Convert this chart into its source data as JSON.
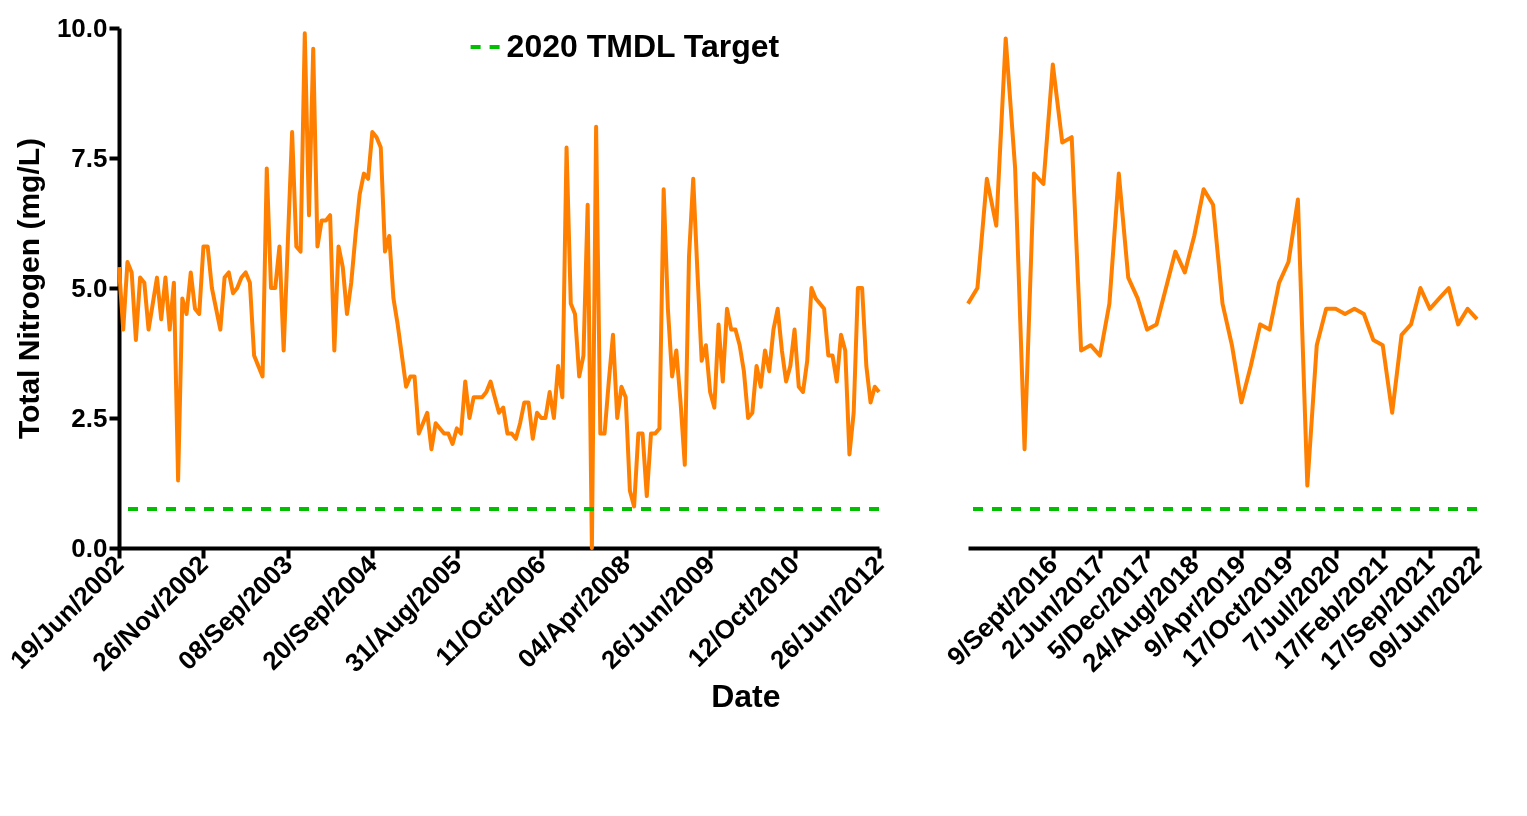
{
  "chart_data": [
    {
      "type": "line",
      "xlabel": "Date",
      "ylabel": "Total Nitrogen (mg/L)",
      "categories": [
        "19/Jun/2002",
        null,
        null,
        null,
        null,
        null,
        null,
        null,
        null,
        null,
        null,
        null,
        null,
        null,
        null,
        null,
        null,
        null,
        null,
        null,
        "26/Nov/2002",
        null,
        null,
        null,
        null,
        null,
        null,
        null,
        null,
        null,
        null,
        null,
        null,
        null,
        null,
        null,
        null,
        null,
        null,
        null,
        "08/Sep/2003",
        null,
        null,
        null,
        null,
        null,
        null,
        null,
        null,
        null,
        null,
        null,
        null,
        null,
        null,
        null,
        null,
        null,
        null,
        null,
        "20/Sep/2004",
        null,
        null,
        null,
        null,
        null,
        null,
        null,
        null,
        null,
        null,
        null,
        null,
        null,
        null,
        null,
        null,
        null,
        null,
        null,
        "31/Aug/2005",
        null,
        null,
        null,
        null,
        null,
        null,
        null,
        null,
        null,
        null,
        null,
        null,
        null,
        null,
        null,
        null,
        null,
        null,
        null,
        "11/Oct/2006",
        null,
        null,
        null,
        null,
        null,
        null,
        null,
        null,
        null,
        null,
        null,
        null,
        null,
        null,
        null,
        null,
        null,
        null,
        null,
        "04/Apr/2008",
        null,
        null,
        null,
        null,
        null,
        null,
        null,
        null,
        null,
        null,
        null,
        null,
        null,
        null,
        null,
        null,
        null,
        null,
        null,
        "26/Jun/2009",
        null,
        null,
        null,
        null,
        null,
        null,
        null,
        null,
        null,
        null,
        null,
        null,
        null,
        null,
        null,
        null,
        null,
        null,
        null,
        "12/Oct/2010",
        null,
        null,
        null,
        null,
        null,
        null,
        null,
        null,
        null,
        null,
        null,
        null,
        null,
        null,
        null,
        null,
        null,
        null,
        null,
        "26/Jun/2012"
      ],
      "ylim": [
        0,
        10
      ],
      "yticks": [
        {
          "value": 0,
          "label": "0.0"
        },
        2.5,
        {
          "value": 5,
          "label": "5.0"
        },
        7.5,
        {
          "value": 10,
          "label": "10.0"
        }
      ],
      "series": [
        {
          "color": "#ff8000",
          "values": [
            5.4,
            4.2,
            5.5,
            5.3,
            4.0,
            5.2,
            5.1,
            4.2,
            4.7,
            5.2,
            4.4,
            5.2,
            4.2,
            5.1,
            1.3,
            4.8,
            4.5,
            5.3,
            4.6,
            4.5,
            5.8,
            5.8,
            5.0,
            4.6,
            4.2,
            5.2,
            5.3,
            4.9,
            5.0,
            5.2,
            5.3,
            5.1,
            3.7,
            3.5,
            3.3,
            7.3,
            5.0,
            5.0,
            5.8,
            3.8,
            5.9,
            8.0,
            5.8,
            5.7,
            9.9,
            6.4,
            9.6,
            5.8,
            6.3,
            6.3,
            6.4,
            3.8,
            5.8,
            5.4,
            4.5,
            5.1,
            6.0,
            6.8,
            7.2,
            7.1,
            8.0,
            7.9,
            7.7,
            5.7,
            6.0,
            4.8,
            4.3,
            3.7,
            3.1,
            3.3,
            3.3,
            2.2,
            2.4,
            2.6,
            1.9,
            2.4,
            2.3,
            2.2,
            2.2,
            2.0,
            2.3,
            2.2,
            3.2,
            2.5,
            2.9,
            2.9,
            2.9,
            3.0,
            3.2,
            2.9,
            2.6,
            2.7,
            2.2,
            2.2,
            2.1,
            2.4,
            2.8,
            2.8,
            2.1,
            2.6,
            2.5,
            2.5,
            3.0,
            2.5,
            3.5,
            2.9,
            7.7,
            4.7,
            4.5,
            3.3,
            3.7,
            6.6,
            0.0,
            8.1,
            2.2,
            2.2,
            3.2,
            4.1,
            2.5,
            3.1,
            2.9,
            1.1,
            0.8,
            2.2,
            2.2,
            1.0,
            2.2,
            2.2,
            2.3,
            6.9,
            4.6,
            3.3,
            3.8,
            2.8,
            1.6,
            5.6,
            7.1,
            5.3,
            3.6,
            3.9,
            3.0,
            2.7,
            4.3,
            3.2,
            4.6,
            4.2,
            4.2,
            3.9,
            3.4,
            2.5,
            2.6,
            3.5,
            3.1,
            3.8,
            3.4,
            4.2,
            4.6,
            3.8,
            3.2,
            3.5,
            4.2,
            3.1,
            3.0,
            3.6,
            5.0,
            4.8,
            4.7,
            4.6,
            3.7,
            3.7,
            3.2,
            4.1,
            3.8,
            1.8,
            2.6,
            5.0,
            5.0,
            3.5,
            2.8,
            3.1,
            3.0
          ]
        }
      ],
      "ref_lines": [
        {
          "axis": "y",
          "value": 0.75,
          "label": "2020 TMDL Target",
          "color": "#00c000",
          "line_style": "dashed"
        }
      ],
      "legend": "top",
      "grid": false,
      "marker": "none",
      "line_style": "solid"
    },
    {
      "type": "line",
      "categories": [
        null,
        null,
        null,
        null,
        null,
        null,
        null,
        null,
        null,
        "9/Sept/2016",
        null,
        null,
        null,
        null,
        "2/Jun/2017",
        null,
        null,
        null,
        null,
        "5/Dec/2017",
        null,
        null,
        null,
        null,
        "24/Aug/2018",
        null,
        null,
        null,
        null,
        "9/Apr/2019",
        null,
        null,
        null,
        null,
        "17/Oct/2019",
        null,
        null,
        null,
        null,
        "7/Jul/2020",
        null,
        null,
        null,
        null,
        "17/Feb/2021",
        null,
        null,
        null,
        null,
        "17/Sep/2021",
        null,
        null,
        null,
        null,
        "09/Jun/2022"
      ],
      "ylim": [
        0,
        10
      ],
      "series": [
        {
          "color": "#ff8000",
          "values": [
            4.7,
            5.0,
            7.1,
            6.2,
            9.8,
            7.3,
            1.9,
            7.2,
            7.0,
            9.3,
            7.8,
            7.9,
            3.8,
            3.9,
            3.7,
            4.7,
            7.2,
            5.2,
            4.8,
            4.2,
            4.3,
            5.0,
            5.7,
            5.3,
            6.0,
            6.9,
            6.6,
            4.7,
            3.9,
            2.8,
            3.5,
            4.3,
            4.2,
            5.1,
            5.5,
            6.7,
            1.2,
            3.9,
            4.6,
            4.6,
            4.5,
            4.6,
            4.5,
            4.0,
            3.9,
            2.6,
            4.1,
            4.3,
            5.0,
            4.6,
            4.8,
            5.0,
            4.3,
            4.6,
            4.4
          ]
        }
      ],
      "ref_lines": [
        {
          "axis": "y",
          "value": 0.75,
          "color": "#00c000",
          "line_style": "dashed"
        }
      ],
      "tick_labels": "x",
      "grid": false,
      "marker": "none",
      "line_style": "solid"
    }
  ]
}
